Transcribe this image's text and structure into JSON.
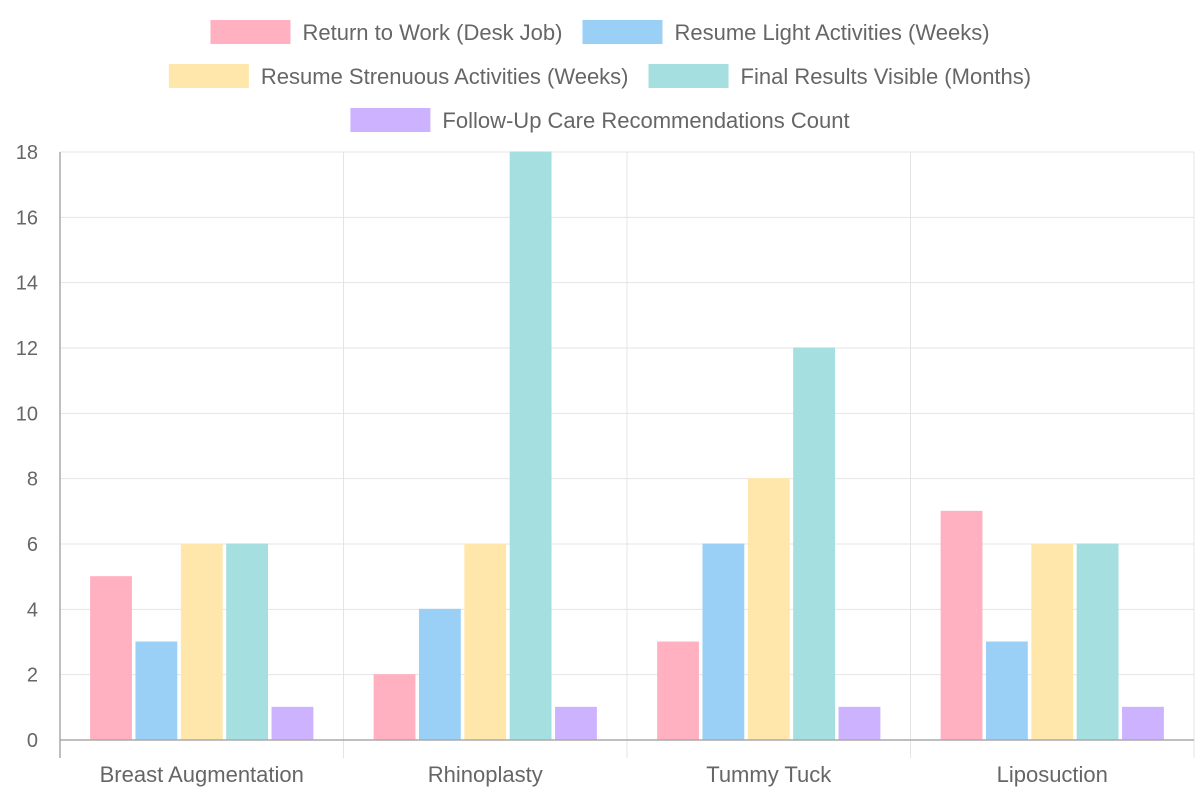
{
  "chart_data": {
    "type": "bar",
    "title": "",
    "xlabel": "",
    "ylabel": "",
    "categories": [
      "Breast Augmentation",
      "Rhinoplasty",
      "Tummy Tuck",
      "Liposuction"
    ],
    "ylim": [
      0,
      18
    ],
    "yticks": [
      "0",
      "2",
      "4",
      "6",
      "8",
      "10",
      "12",
      "14",
      "16",
      "18"
    ],
    "grid": true,
    "legend_position": "top",
    "series": [
      {
        "name": "Return to Work (Desk Job)",
        "values": [
          5,
          2,
          3,
          7
        ],
        "color": "#ffb1c1"
      },
      {
        "name": "Resume Light Activities (Weeks)",
        "values": [
          3,
          4,
          6,
          3
        ],
        "color": "#9ad0f5"
      },
      {
        "name": "Resume Strenuous Activities (Weeks)",
        "values": [
          6,
          6,
          8,
          6
        ],
        "color": "#ffe6aa"
      },
      {
        "name": "Final Results Visible (Months)",
        "values": [
          6,
          18,
          12,
          6
        ],
        "color": "#a5dfdf"
      },
      {
        "name": "Follow-Up Care Recommendations Count",
        "values": [
          1,
          1,
          1,
          1
        ],
        "color": "#ccb2ff"
      }
    ]
  }
}
